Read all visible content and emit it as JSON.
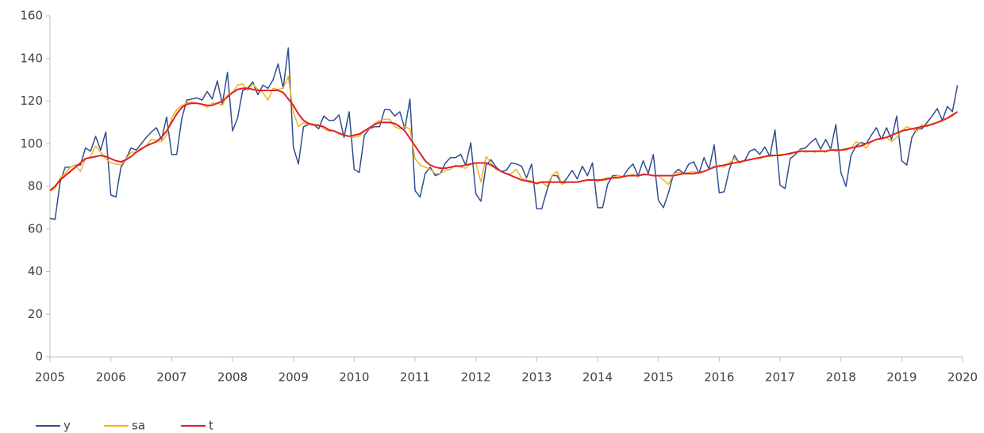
{
  "chart_data": {
    "type": "line",
    "x": [
      2005,
      2005.083,
      2005.167,
      2005.25,
      2005.333,
      2005.417,
      2005.5,
      2005.583,
      2005.667,
      2005.75,
      2005.833,
      2005.917,
      2006,
      2006.083,
      2006.167,
      2006.25,
      2006.333,
      2006.417,
      2006.5,
      2006.583,
      2006.667,
      2006.75,
      2006.833,
      2006.917,
      2007,
      2007.083,
      2007.167,
      2007.25,
      2007.333,
      2007.417,
      2007.5,
      2007.583,
      2007.667,
      2007.75,
      2007.833,
      2007.917,
      2008,
      2008.083,
      2008.167,
      2008.25,
      2008.333,
      2008.417,
      2008.5,
      2008.583,
      2008.667,
      2008.75,
      2008.833,
      2008.917,
      2009,
      2009.083,
      2009.167,
      2009.25,
      2009.333,
      2009.417,
      2009.5,
      2009.583,
      2009.667,
      2009.75,
      2009.833,
      2009.917,
      2010,
      2010.083,
      2010.167,
      2010.25,
      2010.333,
      2010.417,
      2010.5,
      2010.583,
      2010.667,
      2010.75,
      2010.833,
      2010.917,
      2011,
      2011.083,
      2011.167,
      2011.25,
      2011.333,
      2011.417,
      2011.5,
      2011.583,
      2011.667,
      2011.75,
      2011.833,
      2011.917,
      2012,
      2012.083,
      2012.167,
      2012.25,
      2012.333,
      2012.417,
      2012.5,
      2012.583,
      2012.667,
      2012.75,
      2012.833,
      2012.917,
      2013,
      2013.083,
      2013.167,
      2013.25,
      2013.333,
      2013.417,
      2013.5,
      2013.583,
      2013.667,
      2013.75,
      2013.833,
      2013.917,
      2014,
      2014.083,
      2014.167,
      2014.25,
      2014.333,
      2014.417,
      2014.5,
      2014.583,
      2014.667,
      2014.75,
      2014.833,
      2014.917,
      2015,
      2015.083,
      2015.167,
      2015.25,
      2015.333,
      2015.417,
      2015.5,
      2015.583,
      2015.667,
      2015.75,
      2015.833,
      2015.917,
      2016,
      2016.083,
      2016.167,
      2016.25,
      2016.333,
      2016.417,
      2016.5,
      2016.583,
      2016.667,
      2016.75,
      2016.833,
      2016.917,
      2017,
      2017.083,
      2017.167,
      2017.25,
      2017.333,
      2017.417,
      2017.5,
      2017.583,
      2017.667,
      2017.75,
      2017.833,
      2017.917,
      2018,
      2018.083,
      2018.167,
      2018.25,
      2018.333,
      2018.417,
      2018.5,
      2018.583,
      2018.667,
      2018.75,
      2018.833,
      2018.917,
      2019,
      2019.083,
      2019.167,
      2019.25,
      2019.333,
      2019.417,
      2019.5,
      2019.583,
      2019.667,
      2019.75,
      2019.833,
      2019.917
    ],
    "series": [
      {
        "name": "y",
        "color": "#2f4f8f",
        "values": [
          65,
          64.5,
          82,
          89,
          89,
          90,
          90,
          98,
          96.5,
          103.5,
          97,
          105.5,
          76,
          75,
          89,
          93,
          98,
          97,
          100,
          103,
          105.5,
          107.5,
          102,
          112.5,
          95,
          95,
          112,
          120.5,
          121,
          121.5,
          120.5,
          124.5,
          121,
          129.5,
          118.5,
          133.5,
          106,
          112,
          125,
          126,
          129,
          123,
          127.5,
          126,
          130,
          137.5,
          126,
          145,
          98.5,
          90.5,
          108,
          109,
          109,
          107,
          113,
          111,
          111,
          113.5,
          103,
          115,
          88,
          86.5,
          104,
          107,
          108,
          108,
          116,
          116,
          113,
          115,
          107,
          121,
          78,
          75,
          86,
          89,
          85,
          86,
          91,
          93.5,
          93.5,
          95,
          90,
          100.5,
          76.5,
          73,
          90,
          92.5,
          89,
          87,
          87.5,
          91,
          90.5,
          89.5,
          84,
          90.5,
          69.5,
          69.5,
          78,
          85,
          85,
          81,
          84,
          87.5,
          83.5,
          89.5,
          85,
          91,
          70,
          70,
          81,
          85,
          85,
          84.5,
          88,
          90.5,
          85,
          92,
          86,
          95,
          73.5,
          70,
          77,
          86,
          88,
          86,
          90.5,
          91.5,
          86,
          93.5,
          88,
          99.5,
          77,
          77.5,
          88,
          94.5,
          91,
          92,
          96.5,
          97.5,
          95,
          98.5,
          94,
          106.5,
          80.5,
          79,
          93,
          95,
          97.5,
          98,
          100.5,
          102.5,
          97.5,
          102,
          97.5,
          109,
          86.5,
          80,
          94.5,
          99,
          100.5,
          100,
          104,
          107.5,
          102,
          107.5,
          102,
          113,
          92,
          90,
          103,
          107,
          107,
          110,
          113,
          116.5,
          111,
          117.5,
          115,
          127.5
        ]
      },
      {
        "name": "sa",
        "color": "#f2b21c",
        "values": [
          78,
          79,
          84,
          86,
          89,
          90,
          87,
          93,
          94,
          99,
          96,
          93,
          91,
          90.5,
          90,
          93,
          96,
          96,
          98,
          99,
          102,
          101.5,
          101,
          104,
          112,
          116,
          118,
          119,
          119.5,
          119,
          118.5,
          117,
          119,
          119,
          118,
          123,
          124,
          127.5,
          128,
          125,
          128,
          125.5,
          124,
          120.5,
          126,
          125.5,
          126,
          131.5,
          115,
          108,
          110,
          109,
          108.5,
          109,
          107,
          106,
          106,
          104.5,
          104,
          103.5,
          103,
          103.5,
          106,
          107,
          109.5,
          111,
          111.5,
          111.5,
          108,
          107,
          108,
          107,
          93,
          90,
          89,
          88,
          86,
          86,
          87.5,
          88,
          90,
          89,
          88.5,
          90.5,
          91,
          82,
          94,
          91,
          88,
          87,
          86,
          86,
          88,
          84,
          83,
          82.5,
          81,
          82,
          80,
          85,
          87,
          81,
          82,
          82,
          82,
          82.5,
          83,
          83,
          82,
          83.5,
          84,
          84,
          85,
          84.5,
          85,
          85.5,
          84.5,
          86,
          85.5,
          85,
          85,
          83,
          81,
          86,
          86.5,
          86,
          86.5,
          87,
          86,
          87,
          88,
          89.5,
          90,
          89,
          91,
          93,
          91,
          92,
          92.5,
          93,
          93,
          94,
          94,
          94.5,
          95,
          95,
          95,
          96,
          97,
          96,
          96.5,
          96,
          97,
          96,
          97.5,
          96.5,
          97,
          97,
          98,
          101,
          100,
          98,
          101,
          102,
          102,
          103,
          101,
          103,
          106,
          108,
          107,
          106,
          109,
          108,
          109.5,
          110,
          110.5,
          112,
          113,
          115
        ]
      },
      {
        "name": "t",
        "color": "#e0202a",
        "values": [
          78,
          80,
          83,
          85,
          87,
          89,
          91,
          93,
          93.5,
          94,
          94.5,
          94,
          93,
          92,
          91.5,
          92.5,
          94,
          96,
          97.5,
          99,
          100,
          101,
          103,
          106,
          110,
          114,
          117,
          118.5,
          119,
          119,
          118.5,
          118,
          118,
          119,
          120,
          122,
          124,
          125.5,
          126,
          126,
          125.5,
          125,
          125,
          125,
          125,
          125,
          124,
          121,
          118,
          114,
          111,
          109.5,
          109,
          108.5,
          108,
          106.5,
          106,
          105,
          104,
          103.5,
          104,
          104.5,
          106,
          107.5,
          109,
          110,
          110,
          110,
          109.5,
          108,
          106,
          102.5,
          99,
          95.5,
          92,
          90,
          89,
          88.5,
          88.5,
          89,
          89.5,
          89.5,
          90,
          90.5,
          91,
          91,
          91,
          90,
          88.5,
          87,
          86,
          85,
          84,
          83,
          82.5,
          82,
          81.5,
          82,
          82,
          82,
          82,
          82,
          82,
          82,
          82,
          82.5,
          83,
          83,
          83,
          83,
          83.5,
          84,
          84,
          84.5,
          85,
          85,
          85,
          85.5,
          85.5,
          85,
          85,
          85,
          85,
          85,
          85.5,
          86,
          86,
          86,
          86.5,
          87,
          88,
          89,
          89.5,
          90,
          90.5,
          91,
          91.5,
          92,
          92.5,
          93,
          93.5,
          94,
          94.5,
          94.5,
          94.5,
          95,
          95.5,
          96,
          96.5,
          96.5,
          96.5,
          96.5,
          96.5,
          96.5,
          97,
          97,
          97,
          97.5,
          98,
          98.5,
          99,
          100,
          101,
          102,
          102.5,
          103,
          104,
          105,
          106,
          106.5,
          107,
          107.5,
          108,
          108.5,
          109,
          110,
          111,
          112,
          113.5,
          115
        ]
      }
    ],
    "xlim": [
      2005,
      2020
    ],
    "xticks": [
      2005,
      2006,
      2007,
      2008,
      2009,
      2010,
      2011,
      2012,
      2013,
      2014,
      2015,
      2016,
      2017,
      2018,
      2019,
      2020
    ],
    "ylim": [
      0,
      160
    ],
    "yticks": [
      0,
      20,
      40,
      60,
      80,
      100,
      120,
      140,
      160
    ],
    "grid": false,
    "legend": "bottom-left"
  }
}
